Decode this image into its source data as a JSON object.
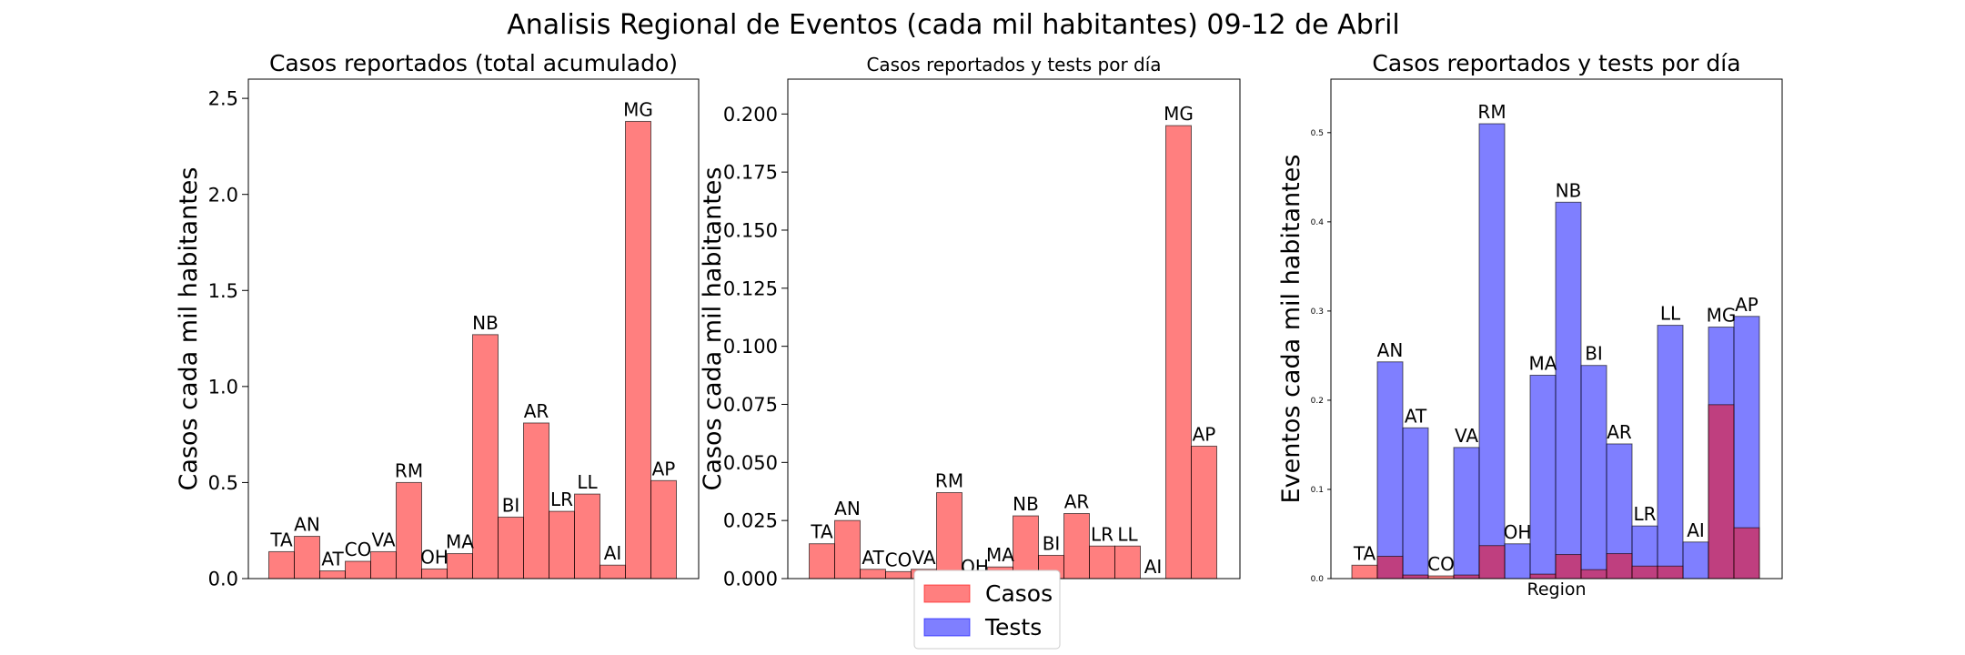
{
  "figure": {
    "suptitle": "Analisis Regional de Eventos (cada mil habitantes) 09-12 de Abril",
    "legend": {
      "placement": "bottom-center",
      "entries": [
        {
          "label": "Casos",
          "color": "#ff0000"
        },
        {
          "label": "Tests",
          "color": "#0000ff"
        }
      ]
    },
    "colors": {
      "casos": "#ff0000",
      "tests": "#0000ff",
      "bar_alpha": 0.5
    }
  },
  "chart_data": [
    {
      "type": "bar",
      "title": "Casos reportados (total acumulado)",
      "xlabel": "",
      "ylabel": "Casos cada mil habitantes",
      "ylim": [
        0,
        2.6
      ],
      "yticks": [
        "0.0",
        "0.5",
        "1.0",
        "1.5",
        "2.0",
        "2.5"
      ],
      "categories": [
        "TA",
        "AN",
        "AT",
        "CO",
        "VA",
        "RM",
        "OH",
        "MA",
        "NB",
        "BI",
        "AR",
        "LR",
        "LL",
        "AI",
        "MG",
        "AP"
      ],
      "series": [
        {
          "key": "casos",
          "values": [
            0.14,
            0.22,
            0.04,
            0.09,
            0.14,
            0.5,
            0.05,
            0.13,
            1.27,
            0.32,
            0.81,
            0.35,
            0.44,
            0.07,
            2.38,
            0.51
          ]
        }
      ]
    },
    {
      "type": "bar",
      "title": "Casos reportados y tests por día",
      "xlabel": "",
      "ylabel": "Casos cada mil habitantes",
      "ylim": [
        0,
        0.215
      ],
      "yticks": [
        "0.000",
        "0.025",
        "0.050",
        "0.075",
        "0.100",
        "0.125",
        "0.150",
        "0.175",
        "0.200"
      ],
      "categories": [
        "TA",
        "AN",
        "AT",
        "CO",
        "VA",
        "RM",
        "OH",
        "MA",
        "NB",
        "BI",
        "AR",
        "LR",
        "LL",
        "AI",
        "MG",
        "AP"
      ],
      "series": [
        {
          "key": "casos",
          "values": [
            0.015,
            0.025,
            0.004,
            0.003,
            0.004,
            0.037,
            0.0,
            0.005,
            0.027,
            0.01,
            0.028,
            0.014,
            0.014,
            0.0,
            0.195,
            0.057
          ]
        }
      ]
    },
    {
      "type": "bar",
      "title": "Casos reportados y tests por día",
      "xlabel": "Region",
      "ylabel": "Eventos cada mil habitantes",
      "ylim": [
        0,
        0.56
      ],
      "yticks": [
        "0.0",
        "0.1",
        "0.2",
        "0.3",
        "0.4",
        "0.5"
      ],
      "categories": [
        "TA",
        "AN",
        "AT",
        "CO",
        "VA",
        "RM",
        "OH",
        "MA",
        "NB",
        "BI",
        "AR",
        "LR",
        "LL",
        "AI",
        "MG",
        "AP"
      ],
      "series": [
        {
          "key": "casos",
          "values": [
            0.015,
            0.025,
            0.004,
            0.003,
            0.004,
            0.037,
            0.0,
            0.005,
            0.027,
            0.01,
            0.028,
            0.014,
            0.014,
            0.0,
            0.195,
            0.057
          ]
        },
        {
          "key": "tests",
          "values": [
            0.0,
            0.243,
            0.169,
            0.0,
            0.147,
            0.51,
            0.039,
            0.228,
            0.422,
            0.239,
            0.151,
            0.059,
            0.284,
            0.041,
            0.282,
            0.294
          ]
        }
      ],
      "label_series": "max"
    }
  ]
}
